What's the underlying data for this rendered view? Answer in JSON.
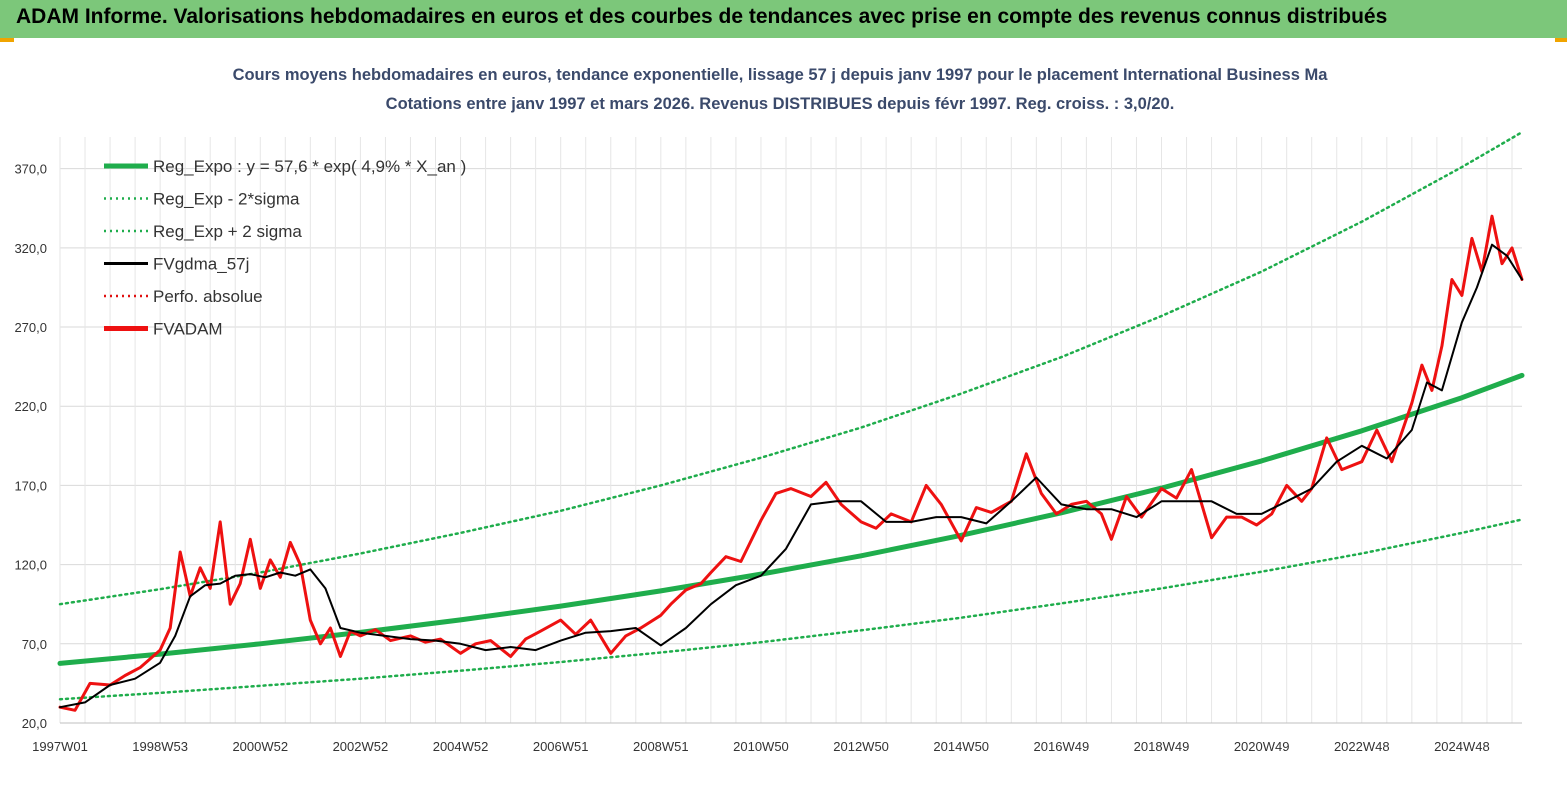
{
  "header": {
    "title": "ADAM Informe. Valorisations hebdomadaires en euros et des courbes de tendances avec prise en compte des revenus connus distribués"
  },
  "chart_data": {
    "type": "line",
    "title": "Cours moyens hebdomadaires en euros, tendance exponentielle, lissage 57 j depuis janv 1997  pour le placement International Business Ma",
    "subtitle": "Cotations entre janv 1997 et mars 2026. Revenus DISTRIBUES depuis févr 1997. Reg. croiss. : 3,0/20.",
    "xlabel": "",
    "ylabel": "",
    "ylim": [
      20,
      390
    ],
    "xlim": [
      1997.0,
      2026.2
    ],
    "grid": true,
    "legend_placement": "top-left",
    "y_ticks": [
      "20,0",
      "70,0",
      "120,0",
      "170,0",
      "220,0",
      "270,0",
      "320,0",
      "370,0"
    ],
    "x_ticks": [
      {
        "label": "1997W01",
        "x": 1997.0
      },
      {
        "label": "1998W53",
        "x": 1999.0
      },
      {
        "label": "2000W52",
        "x": 2001.0
      },
      {
        "label": "2002W52",
        "x": 2003.0
      },
      {
        "label": "2004W52",
        "x": 2005.0
      },
      {
        "label": "2006W51",
        "x": 2007.0
      },
      {
        "label": "2008W51",
        "x": 2009.0
      },
      {
        "label": "2010W50",
        "x": 2011.0
      },
      {
        "label": "2012W50",
        "x": 2013.0
      },
      {
        "label": "2014W50",
        "x": 2015.0
      },
      {
        "label": "2016W49",
        "x": 2017.0
      },
      {
        "label": "2018W49",
        "x": 2019.0
      },
      {
        "label": "2020W49",
        "x": 2021.0
      },
      {
        "label": "2022W48",
        "x": 2023.0
      },
      {
        "label": "2024W48",
        "x": 2025.0
      }
    ],
    "series": [
      {
        "name": "Reg_Expo : y = 57,6 * exp( 4,9% *  X_an )",
        "color": "#1fad4c",
        "style": "solid-thick",
        "x": [
          1997.0,
          1999.0,
          2001.0,
          2003.0,
          2005.0,
          2007.0,
          2009.0,
          2011.0,
          2013.0,
          2015.0,
          2017.0,
          2019.0,
          2021.0,
          2023.0,
          2025.0,
          2026.2
        ],
        "values": [
          57.6,
          63.5,
          70.0,
          77.2,
          85.1,
          93.8,
          103.4,
          114.0,
          125.6,
          138.5,
          152.7,
          168.3,
          185.5,
          204.5,
          225.4,
          239.5
        ]
      },
      {
        "name": "Reg_Exp - 2*sigma",
        "color": "#1fad4c",
        "style": "dotted",
        "x": [
          1997.0,
          1999.0,
          2001.0,
          2003.0,
          2005.0,
          2007.0,
          2009.0,
          2011.0,
          2013.0,
          2015.0,
          2017.0,
          2019.0,
          2021.0,
          2023.0,
          2025.0,
          2026.2
        ],
        "values": [
          35.0,
          39.0,
          43.5,
          48.0,
          53.0,
          58.5,
          64.5,
          71.0,
          78.5,
          86.5,
          95.5,
          105.0,
          115.5,
          127.0,
          140.0,
          148.5
        ]
      },
      {
        "name": "Reg_Exp + 2 sigma",
        "color": "#1fad4c",
        "style": "dotted",
        "x": [
          1997.0,
          1999.0,
          2001.0,
          2003.0,
          2005.0,
          2007.0,
          2009.0,
          2011.0,
          2013.0,
          2015.0,
          2017.0,
          2019.0,
          2021.0,
          2023.0,
          2025.0,
          2026.2
        ],
        "values": [
          95.0,
          104.5,
          115.0,
          127.0,
          140.0,
          154.0,
          170.0,
          187.5,
          206.5,
          228.0,
          251.0,
          277.0,
          305.0,
          336.5,
          371.0,
          393.0
        ]
      },
      {
        "name": "FVgdma_57j",
        "color": "#000000",
        "style": "solid",
        "x": [
          1997.0,
          1997.5,
          1998.0,
          1998.5,
          1999.0,
          1999.3,
          1999.6,
          1999.9,
          2000.2,
          2000.5,
          2000.8,
          2001.1,
          2001.4,
          2001.7,
          2002.0,
          2002.3,
          2002.6,
          2003.0,
          2003.5,
          2004.0,
          2004.5,
          2005.0,
          2005.5,
          2006.0,
          2006.5,
          2007.0,
          2007.5,
          2008.0,
          2008.5,
          2009.0,
          2009.5,
          2010.0,
          2010.5,
          2011.0,
          2011.5,
          2012.0,
          2012.5,
          2013.0,
          2013.5,
          2014.0,
          2014.5,
          2015.0,
          2015.5,
          2016.0,
          2016.5,
          2017.0,
          2017.5,
          2018.0,
          2018.5,
          2019.0,
          2019.5,
          2020.0,
          2020.5,
          2021.0,
          2021.5,
          2022.0,
          2022.5,
          2023.0,
          2023.5,
          2024.0,
          2024.3,
          2024.6,
          2025.0,
          2025.3,
          2025.6,
          2025.9,
          2026.2
        ],
        "values": [
          30,
          33,
          44,
          48,
          58,
          75,
          100,
          107,
          108,
          113,
          114,
          112,
          115,
          113,
          117,
          105,
          80,
          77,
          75,
          73,
          72,
          70,
          66,
          68,
          66,
          72,
          77,
          78,
          80,
          69,
          80,
          95,
          107,
          113,
          130,
          158,
          160,
          160,
          147,
          147,
          150,
          150,
          146,
          160,
          175,
          158,
          155,
          155,
          150,
          160,
          160,
          160,
          152,
          152,
          160,
          168,
          185,
          195,
          187,
          205,
          235,
          230,
          273,
          295,
          322,
          315,
          300
        ]
      },
      {
        "name": "Perfo. absolue",
        "color": "#e01010",
        "style": "dotted",
        "x": [],
        "values": []
      },
      {
        "name": "FVADAM",
        "color": "#ee1111",
        "style": "solid-thick",
        "x": [
          1997.0,
          1997.3,
          1997.6,
          1998.0,
          1998.3,
          1998.6,
          1999.0,
          1999.2,
          1999.4,
          1999.6,
          1999.8,
          2000.0,
          2000.2,
          2000.4,
          2000.6,
          2000.8,
          2001.0,
          2001.2,
          2001.4,
          2001.6,
          2001.8,
          2002.0,
          2002.2,
          2002.4,
          2002.6,
          2002.8,
          2003.0,
          2003.3,
          2003.6,
          2004.0,
          2004.3,
          2004.6,
          2005.0,
          2005.3,
          2005.6,
          2006.0,
          2006.3,
          2006.6,
          2007.0,
          2007.3,
          2007.6,
          2008.0,
          2008.3,
          2008.6,
          2009.0,
          2009.2,
          2009.5,
          2009.8,
          2010.0,
          2010.3,
          2010.6,
          2011.0,
          2011.3,
          2011.6,
          2012.0,
          2012.3,
          2012.6,
          2013.0,
          2013.3,
          2013.6,
          2014.0,
          2014.3,
          2014.6,
          2015.0,
          2015.3,
          2015.6,
          2016.0,
          2016.3,
          2016.6,
          2016.9,
          2017.2,
          2017.5,
          2017.8,
          2018.0,
          2018.3,
          2018.6,
          2019.0,
          2019.3,
          2019.6,
          2020.0,
          2020.3,
          2020.6,
          2020.9,
          2021.2,
          2021.5,
          2021.8,
          2022.0,
          2022.3,
          2022.6,
          2023.0,
          2023.3,
          2023.6,
          2024.0,
          2024.2,
          2024.4,
          2024.6,
          2024.8,
          2025.0,
          2025.2,
          2025.4,
          2025.6,
          2025.8,
          2026.0,
          2026.2
        ],
        "values": [
          30,
          28,
          45,
          44,
          50,
          55,
          66,
          80,
          128,
          100,
          118,
          105,
          147,
          95,
          108,
          136,
          105,
          123,
          112,
          134,
          120,
          85,
          70,
          80,
          62,
          78,
          75,
          79,
          72,
          75,
          71,
          73,
          64,
          70,
          72,
          62,
          73,
          78,
          85,
          76,
          85,
          64,
          75,
          80,
          88,
          95,
          104,
          108,
          115,
          125,
          122,
          148,
          165,
          168,
          163,
          172,
          158,
          147,
          143,
          152,
          147,
          170,
          158,
          135,
          156,
          153,
          160,
          190,
          165,
          152,
          158,
          160,
          152,
          136,
          163,
          150,
          168,
          162,
          180,
          137,
          150,
          150,
          145,
          152,
          170,
          160,
          168,
          200,
          180,
          185,
          205,
          185,
          222,
          246,
          230,
          258,
          300,
          290,
          326,
          305,
          340,
          310,
          320,
          300
        ]
      }
    ]
  }
}
